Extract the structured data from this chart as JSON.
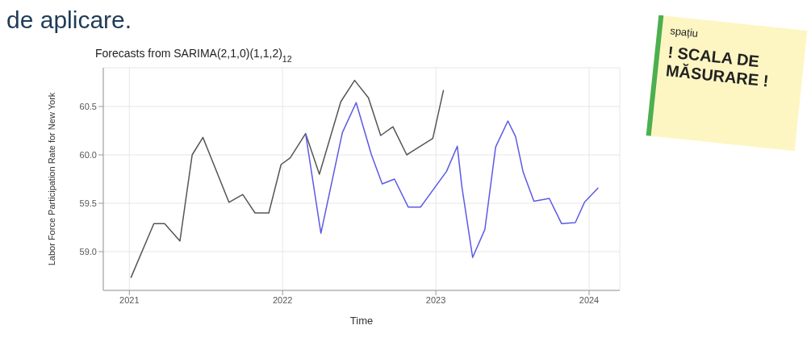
{
  "chart_data": {
    "type": "line",
    "title": "Forecasts from SARIMA(2,1,0)(1,1,2)$_{12}$",
    "xlabel": "Time",
    "ylabel": "Labor Force Participation Rate for New York",
    "annotations": [
      "de aplicare.",
      "spațiu",
      "! SCALA DE MĂSURARE !"
    ],
    "series": [
      {
        "color": "#555555",
        "x": [
          2021.01,
          2021.16,
          2021.23,
          2021.33,
          2021.41,
          2021.48,
          2021.65,
          2021.74,
          2021.82,
          2021.91,
          2021.99,
          2022.05,
          2022.15,
          2022.24,
          2022.38,
          2022.47,
          2022.56,
          2022.64,
          2022.72,
          2022.81,
          2022.98,
          2023.05
        ],
        "values": [
          58.73,
          59.29,
          59.29,
          59.11,
          60.0,
          60.18,
          59.51,
          59.59,
          59.4,
          59.4,
          59.9,
          59.97,
          60.22,
          59.8,
          60.55,
          60.77,
          60.59,
          60.2,
          60.29,
          60.0,
          60.17,
          60.67
        ]
      },
      {
        "color": "#5a5ae6",
        "x": [
          2022.15,
          2022.25,
          2022.39,
          2022.48,
          2022.58,
          2022.65,
          2022.73,
          2022.82,
          2022.9,
          2023.07,
          2023.14,
          2023.17,
          2023.24,
          2023.32,
          2023.39,
          2023.47,
          2023.52,
          2023.57,
          2023.64,
          2023.74,
          2023.82,
          2023.91,
          2023.97,
          2024.06
        ],
        "values": [
          60.22,
          59.19,
          60.23,
          60.54,
          60.0,
          59.7,
          59.75,
          59.46,
          59.46,
          59.83,
          60.09,
          59.67,
          58.94,
          59.23,
          60.08,
          60.35,
          60.19,
          59.82,
          59.52,
          59.55,
          59.29,
          59.3,
          59.51,
          59.66
        ]
      }
    ],
    "xlim": [
      2020.83,
      2024.2
    ],
    "xticks": [
      2021,
      2022,
      2023,
      2024
    ],
    "ylim": [
      58.6,
      60.9
    ],
    "yticks": [
      {
        "value": 59,
        "label": "59.0"
      },
      59.5,
      {
        "value": 60,
        "label": "60.0"
      },
      60.5
    ],
    "grid": true,
    "marker": "none",
    "line_style": "solid"
  }
}
